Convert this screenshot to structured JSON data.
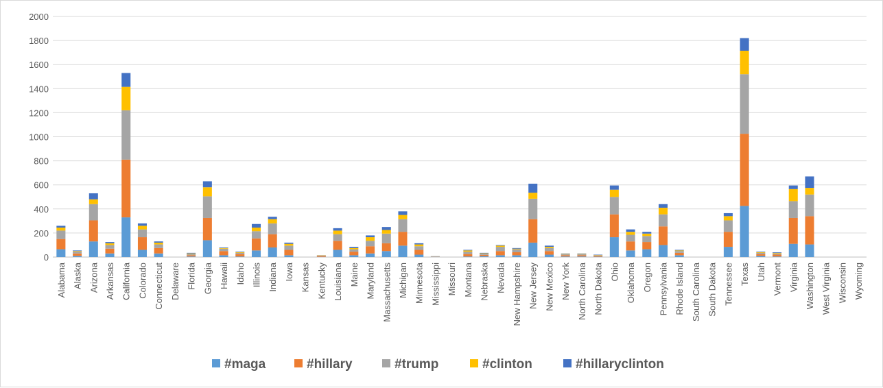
{
  "chart_data": {
    "type": "bar",
    "stacked": true,
    "categories": [
      "Alabama",
      "Alaska",
      "Arizona",
      "Arkansas",
      "California",
      "Colorado",
      "Connecticut",
      "Delaware",
      "Florida",
      "Georgia",
      "Hawaii",
      "Idaho",
      "Illinois",
      "Indiana",
      "Iowa",
      "Kansas",
      "Kentucky",
      "Louisiana",
      "Maine",
      "Maryland",
      "Massachusetts",
      "Michigan",
      "Minnesota",
      "Mississippi",
      "Missouri",
      "Montana",
      "Nebraska",
      "Nevada",
      "New Hampshire",
      "New Jersey",
      "New Mexico",
      "New York",
      "North Carolina",
      "North Dakota",
      "Ohio",
      "Oklahoma",
      "Oregon",
      "Pennsylvania",
      "Rhode Island",
      "South Carolina",
      "South Dakota",
      "Tennessee",
      "Texas",
      "Utah",
      "Vermont",
      "Virginia",
      "Washington",
      "West Virginia",
      "Wisconsin",
      "Wyoming"
    ],
    "series": [
      {
        "name": "#maga",
        "color": "#5b9bd5",
        "values": [
          65,
          10,
          130,
          30,
          330,
          60,
          30,
          0,
          5,
          140,
          15,
          5,
          55,
          80,
          15,
          0,
          2,
          60,
          15,
          30,
          50,
          95,
          20,
          2,
          0,
          5,
          8,
          15,
          15,
          120,
          20,
          5,
          5,
          3,
          165,
          55,
          65,
          100,
          15,
          0,
          0,
          85,
          425,
          10,
          5,
          110,
          105,
          0,
          0,
          0
        ]
      },
      {
        "name": "#hillary",
        "color": "#ed7d31",
        "values": [
          85,
          20,
          175,
          40,
          480,
          105,
          45,
          0,
          10,
          185,
          35,
          20,
          100,
          110,
          45,
          0,
          8,
          75,
          30,
          60,
          65,
          115,
          40,
          2,
          0,
          20,
          10,
          35,
          25,
          195,
          30,
          10,
          10,
          7,
          190,
          75,
          60,
          155,
          20,
          0,
          0,
          125,
          600,
          15,
          15,
          215,
          235,
          0,
          0,
          0
        ]
      },
      {
        "name": "#trump",
        "color": "#a5a5a5",
        "values": [
          70,
          15,
          135,
          30,
          410,
          65,
          30,
          0,
          10,
          180,
          20,
          10,
          60,
          90,
          35,
          0,
          3,
          55,
          20,
          45,
          80,
          105,
          30,
          2,
          0,
          20,
          10,
          35,
          25,
          170,
          25,
          10,
          10,
          5,
          145,
          55,
          50,
          100,
          15,
          0,
          0,
          95,
          495,
          10,
          10,
          140,
          180,
          0,
          0,
          0
        ]
      },
      {
        "name": "#clinton",
        "color": "#ffc000",
        "values": [
          25,
          5,
          40,
          15,
          195,
          30,
          15,
          0,
          5,
          75,
          5,
          5,
          30,
          35,
          15,
          0,
          2,
          30,
          10,
          30,
          30,
          35,
          15,
          1,
          0,
          10,
          3,
          10,
          5,
          50,
          10,
          3,
          3,
          2,
          60,
          25,
          20,
          55,
          5,
          0,
          0,
          35,
          195,
          5,
          5,
          100,
          55,
          0,
          0,
          0
        ]
      },
      {
        "name": "#hillaryclinton",
        "color": "#4472c4",
        "values": [
          15,
          5,
          50,
          10,
          115,
          20,
          10,
          0,
          5,
          50,
          5,
          5,
          30,
          20,
          10,
          0,
          1,
          20,
          10,
          15,
          25,
          30,
          10,
          1,
          0,
          5,
          4,
          5,
          5,
          75,
          10,
          2,
          2,
          3,
          35,
          20,
          15,
          30,
          5,
          0,
          0,
          25,
          105,
          5,
          5,
          30,
          95,
          0,
          0,
          0
        ]
      }
    ],
    "yticks": [
      "0",
      "200",
      "400",
      "600",
      "800",
      "1000",
      "1200",
      "1400",
      "1600",
      "1800",
      "2000"
    ],
    "ylim": [
      0,
      2000
    ],
    "grid": true,
    "legend_position": "bottom"
  }
}
